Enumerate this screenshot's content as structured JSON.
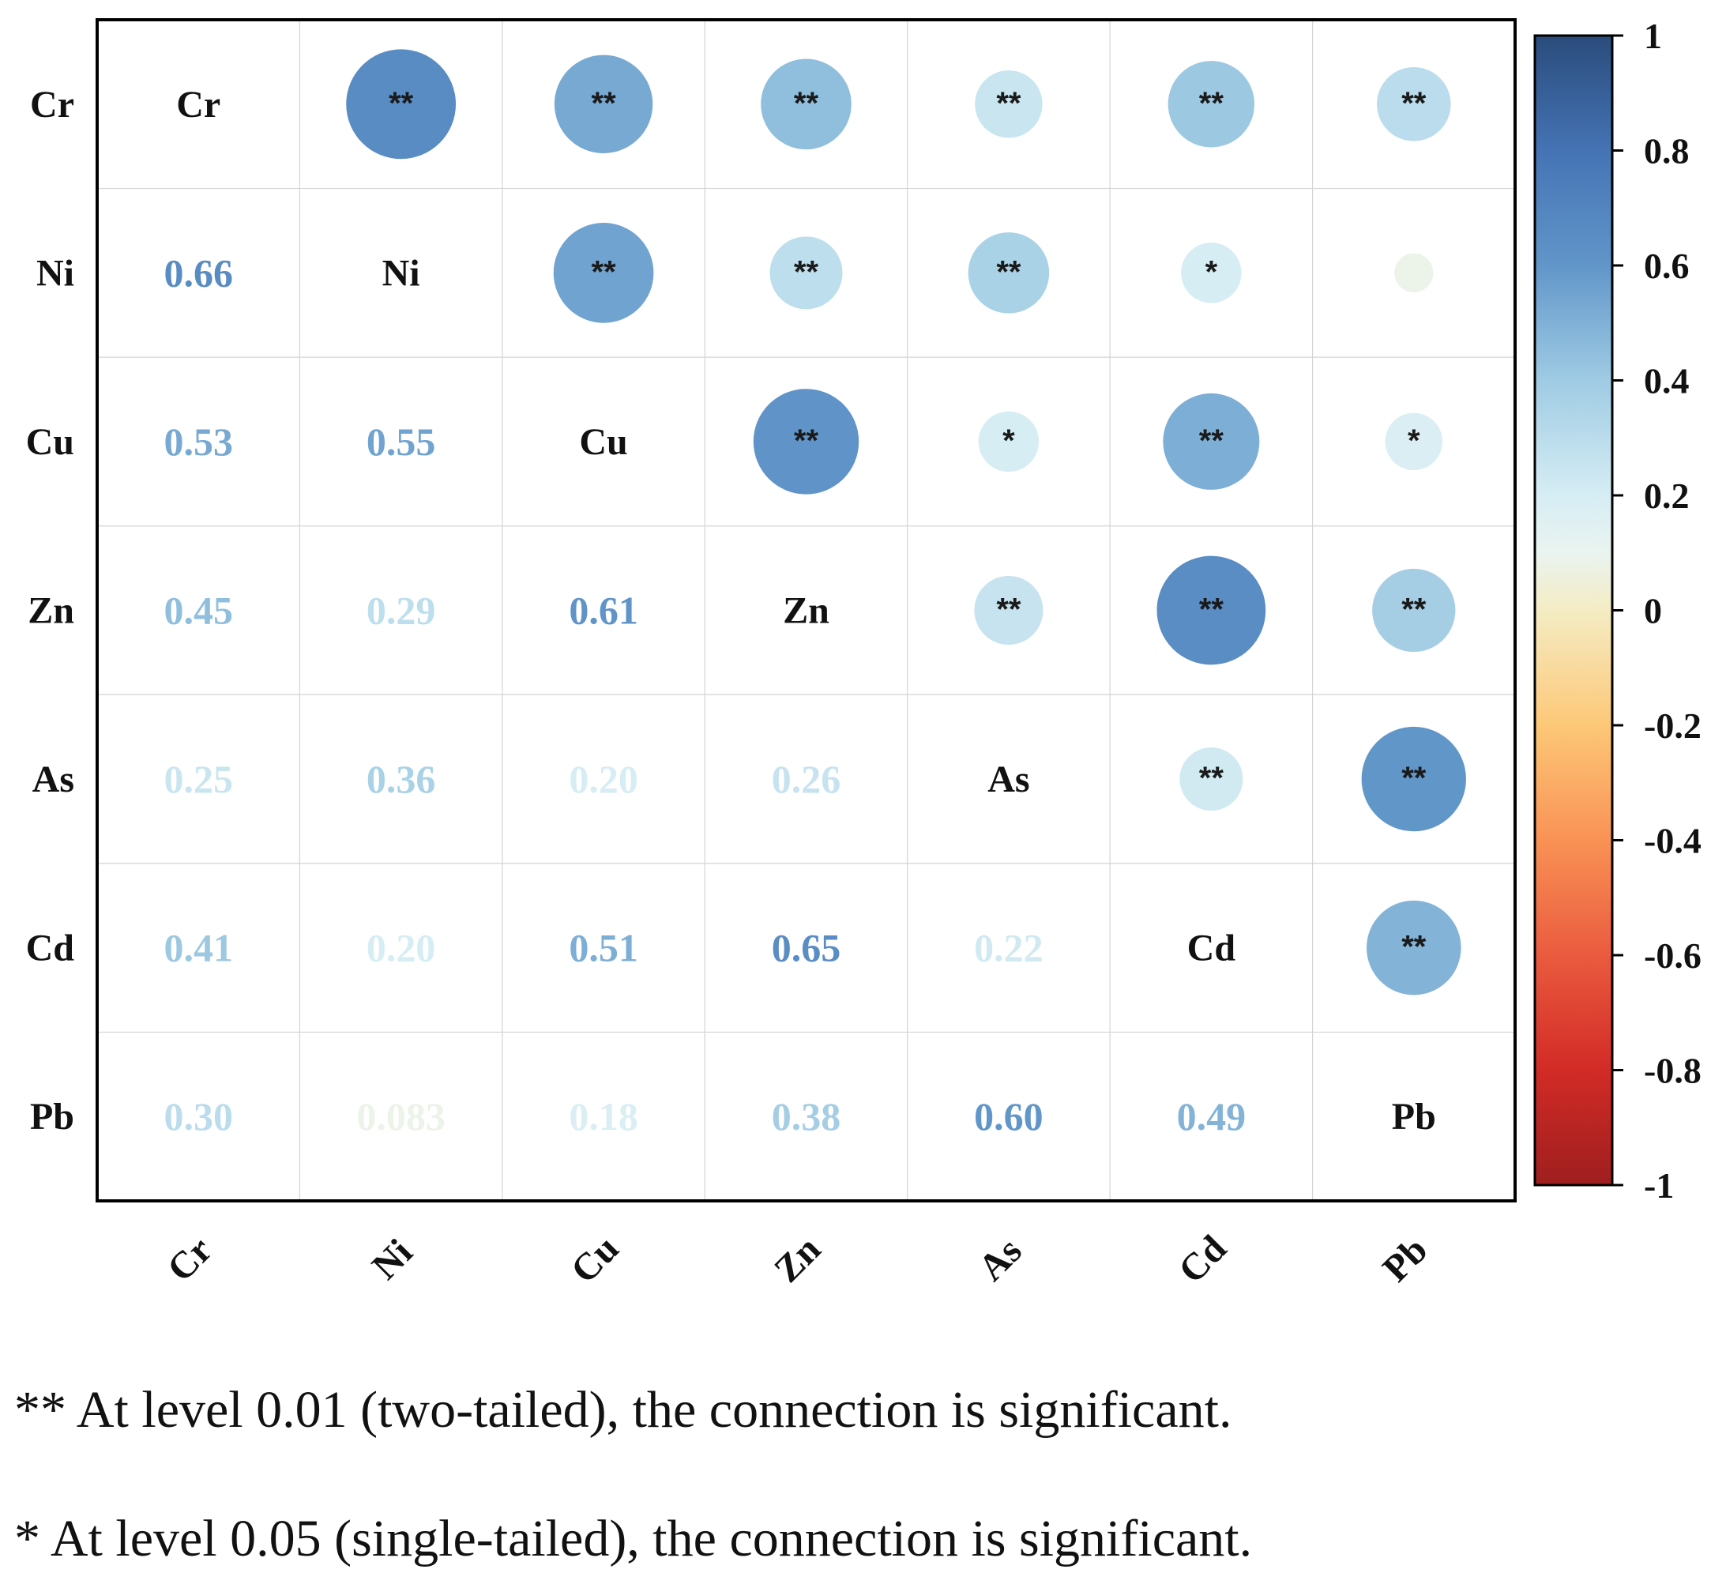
{
  "chart_data": {
    "type": "heatmap",
    "subtype": "correlation-matrix",
    "variables": [
      "Cr",
      "Ni",
      "Cu",
      "Zn",
      "As",
      "Cd",
      "Pb"
    ],
    "matrix": [
      [
        1.0,
        0.66,
        0.53,
        0.45,
        0.25,
        0.41,
        0.3
      ],
      [
        0.66,
        1.0,
        0.55,
        0.29,
        0.36,
        0.2,
        0.083
      ],
      [
        0.53,
        0.55,
        1.0,
        0.61,
        0.2,
        0.51,
        0.18
      ],
      [
        0.45,
        0.29,
        0.61,
        1.0,
        0.26,
        0.65,
        0.38
      ],
      [
        0.25,
        0.36,
        0.2,
        0.26,
        1.0,
        0.22,
        0.6
      ],
      [
        0.41,
        0.2,
        0.51,
        0.65,
        0.22,
        1.0,
        0.49
      ],
      [
        0.3,
        0.083,
        0.18,
        0.38,
        0.6,
        0.49,
        1.0
      ]
    ],
    "lower_labels": [
      [
        "",
        "",
        "",
        "",
        "",
        "",
        ""
      ],
      [
        "0.66",
        "",
        "",
        "",
        "",
        "",
        ""
      ],
      [
        "0.53",
        "0.55",
        "",
        "",
        "",
        "",
        ""
      ],
      [
        "0.45",
        "0.29",
        "0.61",
        "",
        "",
        "",
        ""
      ],
      [
        "0.25",
        "0.36",
        "0.20",
        "0.26",
        "",
        "",
        ""
      ],
      [
        "0.41",
        "0.20",
        "0.51",
        "0.65",
        "0.22",
        "",
        ""
      ],
      [
        "0.30",
        "0.083",
        "0.18",
        "0.38",
        "0.60",
        "0.49",
        ""
      ]
    ],
    "upper_significance": [
      [
        "",
        "**",
        "**",
        "**",
        "**",
        "**",
        "**"
      ],
      [
        "",
        "",
        "**",
        "**",
        "**",
        "*",
        ""
      ],
      [
        "",
        "",
        "",
        "**",
        "*",
        "**",
        "*"
      ],
      [
        "",
        "",
        "",
        "",
        "**",
        "**",
        "**"
      ],
      [
        "",
        "",
        "",
        "",
        "",
        "**",
        "**"
      ],
      [
        "",
        "",
        "",
        "",
        "",
        "",
        "**"
      ],
      [
        "",
        "",
        "",
        "",
        "",
        "",
        ""
      ]
    ],
    "lower_triangle": "numbers",
    "upper_triangle": "circles",
    "diagonal": "variable names",
    "grid": true,
    "colorbar": {
      "range": [
        -1,
        1
      ],
      "ticks": [
        1,
        0.8,
        0.6,
        0.4,
        0.2,
        0,
        -0.2,
        -0.4,
        -0.6,
        -0.8,
        -1
      ],
      "tick_labels": [
        "1",
        "0.8",
        "0.6",
        "0.4",
        "0.2",
        "0",
        "-0.2",
        "-0.4",
        "-0.6",
        "-0.8",
        "-1"
      ],
      "placement": "right",
      "colormap": "RdYlBu",
      "stops": [
        {
          "value": -1.0,
          "color": "#9e1f1f"
        },
        {
          "value": -0.8,
          "color": "#d22b26"
        },
        {
          "value": -0.6,
          "color": "#ea5b3f"
        },
        {
          "value": -0.4,
          "color": "#f99255"
        },
        {
          "value": -0.2,
          "color": "#fdc878"
        },
        {
          "value": 0.0,
          "color": "#f4ecc4"
        },
        {
          "value": 0.1,
          "color": "#eaf4f0"
        },
        {
          "value": 0.2,
          "color": "#d6edf4"
        },
        {
          "value": 0.4,
          "color": "#9fcbe3"
        },
        {
          "value": 0.6,
          "color": "#6196c9"
        },
        {
          "value": 0.8,
          "color": "#4573b4"
        },
        {
          "value": 1.0,
          "color": "#2a4c7c"
        }
      ]
    }
  },
  "footnotes": {
    "double_star": "** At level 0.01 (two-tailed), the connection is significant.",
    "single_star": "* At level 0.05 (single-tailed), the connection is significant."
  }
}
